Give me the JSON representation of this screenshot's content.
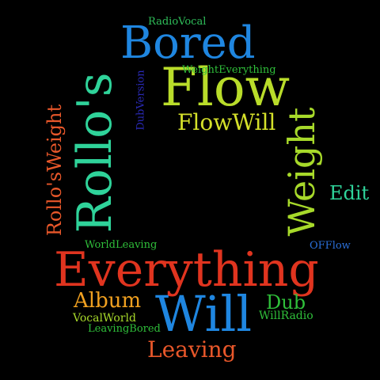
{
  "words": {
    "radio_vocal": {
      "text": "RadioVocal",
      "color": "#2fbf5a"
    },
    "bored": {
      "text": "Bored",
      "color": "#1f86e0"
    },
    "rollos": {
      "text": "Rollo's",
      "color": "#2fd39a"
    },
    "dub_version": {
      "text": "DubVersion",
      "color": "#2a2ab8"
    },
    "flow": {
      "text": "Flow",
      "color": "#b9dc2a"
    },
    "weight_everything": {
      "text": "WeightEverything",
      "color": "#2fbf3a"
    },
    "flow_will": {
      "text": "FlowWill",
      "color": "#d4e02a"
    },
    "rollos_weight": {
      "text": "Rollo'sWeight",
      "color": "#e8572a"
    },
    "weight": {
      "text": "Weight",
      "color": "#a7d92a"
    },
    "edit": {
      "text": "Edit",
      "color": "#2fd39a"
    },
    "world_leaving": {
      "text": "WorldLeaving",
      "color": "#2fbf3a"
    },
    "off_flow": {
      "text": "OFFlow",
      "color": "#2a6fd9"
    },
    "everything": {
      "text": "Everything",
      "color": "#e0341f"
    },
    "album": {
      "text": "Album",
      "color": "#f0a020"
    },
    "will": {
      "text": "Will",
      "color": "#1f86e0"
    },
    "dub": {
      "text": "Dub",
      "color": "#2fbf3a"
    },
    "vocal_world": {
      "text": "VocalWorld",
      "color": "#a7d92a"
    },
    "will_radio": {
      "text": "WillRadio",
      "color": "#2fbf3a"
    },
    "leaving_bored": {
      "text": "LeavingBored",
      "color": "#2fbf3a"
    },
    "leaving": {
      "text": "Leaving",
      "color": "#e8572a"
    }
  }
}
